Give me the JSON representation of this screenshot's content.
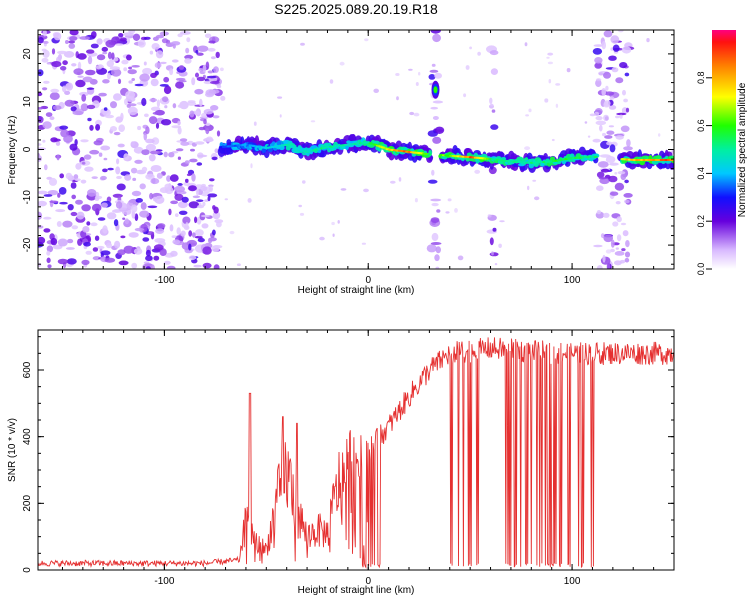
{
  "title": "S225.2025.089.20.19.R18",
  "colors": {
    "snr_line": "#e53030",
    "spectrogram_scatter": "#8a3cf0",
    "spectrogram_track_core": "#ff2020"
  },
  "chart_data": [
    {
      "type": "heatmap",
      "panel": "top",
      "xlabel": "Height of straight line (km)",
      "ylabel": "Frequency (Hz)",
      "xlim": [
        -162,
        150
      ],
      "ylim": [
        -25,
        25
      ],
      "xticks": [
        -100,
        0,
        100
      ],
      "xtick_labels": [
        "-100",
        "0",
        "100"
      ],
      "yticks": [
        -20,
        -10,
        0,
        10,
        20
      ],
      "ytick_labels": [
        "-20",
        "-10",
        "0",
        "10",
        "20"
      ],
      "colorbar": {
        "label": "Normalized spectral amplitude",
        "range": [
          0,
          1
        ],
        "ticks": [
          0.0,
          0.2,
          0.4,
          0.6,
          0.8
        ],
        "tick_labels": [
          "0.0",
          "0.2",
          "0.4",
          "0.6",
          "0.8"
        ],
        "colormap": "rainbow (white-purple-blue-cyan-green-yellow-red)"
      },
      "noise_regions_km": [
        [
          -162,
          -73
        ],
        [
          31,
          35
        ],
        [
          60,
          62
        ],
        [
          112,
          128
        ]
      ],
      "signal_track": [
        {
          "x": -72,
          "freq": 0.5,
          "amp": 0.35
        },
        {
          "x": -60,
          "freq": 1.0,
          "amp": 0.4
        },
        {
          "x": -50,
          "freq": 0.3,
          "amp": 0.45
        },
        {
          "x": -40,
          "freq": 1.0,
          "amp": 0.5
        },
        {
          "x": -30,
          "freq": -0.5,
          "amp": 0.5
        },
        {
          "x": -20,
          "freq": 0.5,
          "amp": 0.55
        },
        {
          "x": -10,
          "freq": 1.0,
          "amp": 0.5
        },
        {
          "x": 0,
          "freq": 1.5,
          "amp": 0.55
        },
        {
          "x": 10,
          "freq": 0.0,
          "amp": 0.8
        },
        {
          "x": 20,
          "freq": -0.5,
          "amp": 0.95
        },
        {
          "x": 30,
          "freq": -1.0,
          "amp": 0.6
        },
        {
          "x": 40,
          "freq": -1.3,
          "amp": 0.7
        },
        {
          "x": 50,
          "freq": -1.6,
          "amp": 0.95
        },
        {
          "x": 60,
          "freq": -2.0,
          "amp": 0.6
        },
        {
          "x": 70,
          "freq": -2.5,
          "amp": 0.55
        },
        {
          "x": 80,
          "freq": -2.8,
          "amp": 0.55
        },
        {
          "x": 90,
          "freq": -2.5,
          "amp": 0.6
        },
        {
          "x": 100,
          "freq": -1.8,
          "amp": 0.6
        },
        {
          "x": 110,
          "freq": -1.5,
          "amp": 0.55
        },
        {
          "x": 130,
          "freq": -2.2,
          "amp": 0.85
        },
        {
          "x": 150,
          "freq": -2.2,
          "amp": 0.95
        }
      ],
      "blob_features": [
        {
          "x": 33,
          "freq": 12.5,
          "amp": 0.6
        }
      ]
    },
    {
      "type": "line",
      "panel": "bottom",
      "xlabel": "Height of straight line (km)",
      "ylabel": "SNR (10 * v/v)",
      "xlim": [
        -162,
        150
      ],
      "ylim": [
        0,
        720
      ],
      "xticks": [
        -100,
        0,
        100
      ],
      "xtick_labels": [
        "-100",
        "0",
        "100"
      ],
      "yticks": [
        0,
        200,
        400,
        600
      ],
      "ytick_labels": [
        "0",
        "200",
        "400",
        "600"
      ],
      "series": [
        {
          "color": "#e53030",
          "envelope": [
            {
              "x": -162,
              "y": 20
            },
            {
              "x": -80,
              "y": 20
            },
            {
              "x": -63,
              "y": 30
            },
            {
              "x": -60,
              "y": 150
            },
            {
              "x": -55,
              "y": 80
            },
            {
              "x": -50,
              "y": 60
            },
            {
              "x": -45,
              "y": 200
            },
            {
              "x": -40,
              "y": 300
            },
            {
              "x": -35,
              "y": 180
            },
            {
              "x": -30,
              "y": 100
            },
            {
              "x": -25,
              "y": 120
            },
            {
              "x": -20,
              "y": 110
            },
            {
              "x": -15,
              "y": 250
            },
            {
              "x": -10,
              "y": 300
            },
            {
              "x": -5,
              "y": 330
            },
            {
              "x": 0,
              "y": 360
            },
            {
              "x": 10,
              "y": 430
            },
            {
              "x": 20,
              "y": 520
            },
            {
              "x": 30,
              "y": 600
            },
            {
              "x": 40,
              "y": 650
            },
            {
              "x": 60,
              "y": 665
            },
            {
              "x": 80,
              "y": 655
            },
            {
              "x": 100,
              "y": 650
            },
            {
              "x": 120,
              "y": 650
            },
            {
              "x": 150,
              "y": 650
            }
          ],
          "spikes": [
            {
              "x": -58,
              "y": 530
            },
            {
              "x": -42,
              "y": 460
            },
            {
              "x": -35,
              "y": 440
            }
          ],
          "dropout_ranges_km": [
            [
              -4,
              6
            ],
            [
              40,
              54
            ],
            [
              67,
              112
            ]
          ]
        }
      ]
    }
  ]
}
